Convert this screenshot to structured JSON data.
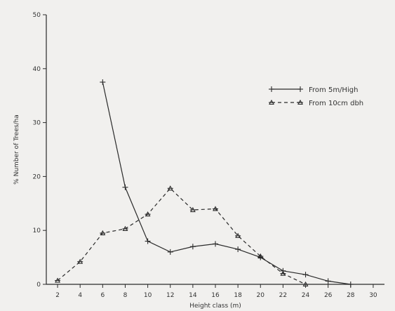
{
  "chart_data": {
    "type": "line",
    "title": "",
    "xlabel": "Height class (m)",
    "ylabel": "% Number of Trees/ha",
    "xlim": [
      1,
      31
    ],
    "ylim": [
      0,
      50
    ],
    "x_ticks": [
      "2",
      "4",
      "6",
      "8",
      "10",
      "12",
      "14",
      "16",
      "18",
      "20",
      "22",
      "24",
      "26",
      "28",
      "30"
    ],
    "y_ticks": [
      "0",
      "10",
      "20",
      "30",
      "40",
      "50"
    ],
    "grid": false,
    "legend_position": "top-right",
    "series": [
      {
        "name": "From 5m/High",
        "style": "solid",
        "x": [
          6,
          8,
          10,
          12,
          14,
          16,
          18,
          20,
          22,
          24,
          26,
          28
        ],
        "values": [
          37.5,
          18,
          8,
          6,
          7,
          7.5,
          6.5,
          5,
          2.5,
          1.8,
          0.6,
          0
        ]
      },
      {
        "name": "From 10cm dbh",
        "style": "dashed",
        "x": [
          2,
          4,
          6,
          8,
          10,
          12,
          14,
          16,
          18,
          20,
          22,
          24
        ],
        "values": [
          0.7,
          4.2,
          9.5,
          10.3,
          13,
          17.8,
          13.8,
          14,
          9,
          5.2,
          2,
          0
        ]
      }
    ],
    "colors": {
      "line": "#2a2a2a",
      "background": "#f1f0ee"
    }
  }
}
